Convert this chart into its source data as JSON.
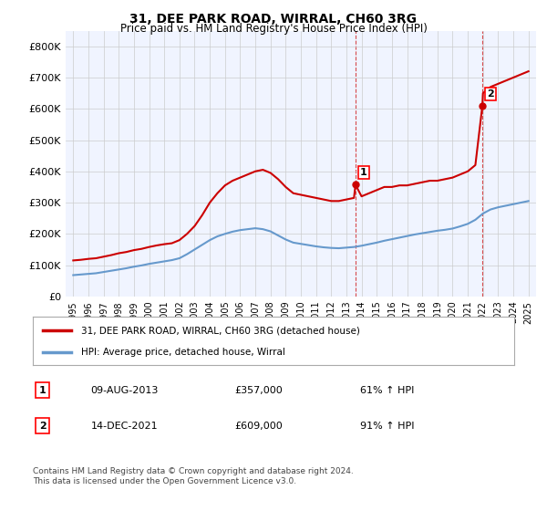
{
  "title": "31, DEE PARK ROAD, WIRRAL, CH60 3RG",
  "subtitle": "Price paid vs. HM Land Registry's House Price Index (HPI)",
  "red_label": "31, DEE PARK ROAD, WIRRAL, CH60 3RG (detached house)",
  "blue_label": "HPI: Average price, detached house, Wirral",
  "annotation1": {
    "num": "1",
    "date": "09-AUG-2013",
    "price": "£357,000",
    "hpi": "61% ↑ HPI",
    "x": 2013.6
  },
  "annotation2": {
    "num": "2",
    "date": "14-DEC-2021",
    "price": "£609,000",
    "hpi": "91% ↑ HPI",
    "x": 2021.96
  },
  "footer": "Contains HM Land Registry data © Crown copyright and database right 2024.\nThis data is licensed under the Open Government Licence v3.0.",
  "xlim": [
    1994.5,
    2025.5
  ],
  "ylim": [
    0,
    850000
  ],
  "yticks": [
    0,
    100000,
    200000,
    300000,
    400000,
    500000,
    600000,
    700000,
    800000
  ],
  "ytick_labels": [
    "£0",
    "£100K",
    "£200K",
    "£300K",
    "£400K",
    "£500K",
    "£600K",
    "£700K",
    "£800K"
  ],
  "background_color": "#f0f4ff",
  "plot_bg_color": "#f0f4ff",
  "red_color": "#cc0000",
  "blue_color": "#6699cc",
  "grid_color": "#cccccc",
  "red_years": [
    1995.0,
    1995.5,
    1996.0,
    1996.5,
    1997.0,
    1997.5,
    1998.0,
    1998.5,
    1999.0,
    1999.5,
    2000.0,
    2000.5,
    2001.0,
    2001.5,
    2002.0,
    2002.5,
    2003.0,
    2003.5,
    2004.0,
    2004.5,
    2005.0,
    2005.5,
    2006.0,
    2006.5,
    2007.0,
    2007.5,
    2008.0,
    2008.5,
    2009.0,
    2009.5,
    2010.0,
    2010.5,
    2011.0,
    2011.5,
    2012.0,
    2012.5,
    2013.0,
    2013.5,
    2013.6,
    2014.0,
    2014.5,
    2015.0,
    2015.5,
    2016.0,
    2016.5,
    2017.0,
    2017.5,
    2018.0,
    2018.5,
    2019.0,
    2019.5,
    2020.0,
    2020.5,
    2021.0,
    2021.5,
    2021.96,
    2022.0,
    2022.5,
    2023.0,
    2023.5,
    2024.0,
    2024.5,
    2025.0
  ],
  "red_values": [
    115000,
    117000,
    120000,
    122000,
    127000,
    132000,
    138000,
    142000,
    148000,
    152000,
    158000,
    163000,
    167000,
    170000,
    180000,
    200000,
    225000,
    260000,
    300000,
    330000,
    355000,
    370000,
    380000,
    390000,
    400000,
    405000,
    395000,
    375000,
    350000,
    330000,
    325000,
    320000,
    315000,
    310000,
    305000,
    305000,
    310000,
    315000,
    357000,
    320000,
    330000,
    340000,
    350000,
    350000,
    355000,
    355000,
    360000,
    365000,
    370000,
    370000,
    375000,
    380000,
    390000,
    400000,
    420000,
    609000,
    650000,
    670000,
    680000,
    690000,
    700000,
    710000,
    720000
  ],
  "blue_years": [
    1995.0,
    1995.5,
    1996.0,
    1996.5,
    1997.0,
    1997.5,
    1998.0,
    1998.5,
    1999.0,
    1999.5,
    2000.0,
    2000.5,
    2001.0,
    2001.5,
    2002.0,
    2002.5,
    2003.0,
    2003.5,
    2004.0,
    2004.5,
    2005.0,
    2005.5,
    2006.0,
    2006.5,
    2007.0,
    2007.5,
    2008.0,
    2008.5,
    2009.0,
    2009.5,
    2010.0,
    2010.5,
    2011.0,
    2011.5,
    2012.0,
    2012.5,
    2013.0,
    2013.5,
    2014.0,
    2014.5,
    2015.0,
    2015.5,
    2016.0,
    2016.5,
    2017.0,
    2017.5,
    2018.0,
    2018.5,
    2019.0,
    2019.5,
    2020.0,
    2020.5,
    2021.0,
    2021.5,
    2022.0,
    2022.5,
    2023.0,
    2023.5,
    2024.0,
    2024.5,
    2025.0
  ],
  "blue_values": [
    68000,
    70000,
    72000,
    74000,
    78000,
    82000,
    86000,
    90000,
    95000,
    99000,
    104000,
    108000,
    112000,
    116000,
    122000,
    135000,
    150000,
    165000,
    180000,
    192000,
    200000,
    207000,
    212000,
    215000,
    218000,
    215000,
    208000,
    195000,
    182000,
    172000,
    168000,
    164000,
    160000,
    157000,
    155000,
    154000,
    156000,
    158000,
    162000,
    167000,
    172000,
    178000,
    183000,
    188000,
    193000,
    198000,
    202000,
    206000,
    210000,
    213000,
    217000,
    224000,
    232000,
    245000,
    265000,
    278000,
    285000,
    290000,
    295000,
    300000,
    305000
  ]
}
